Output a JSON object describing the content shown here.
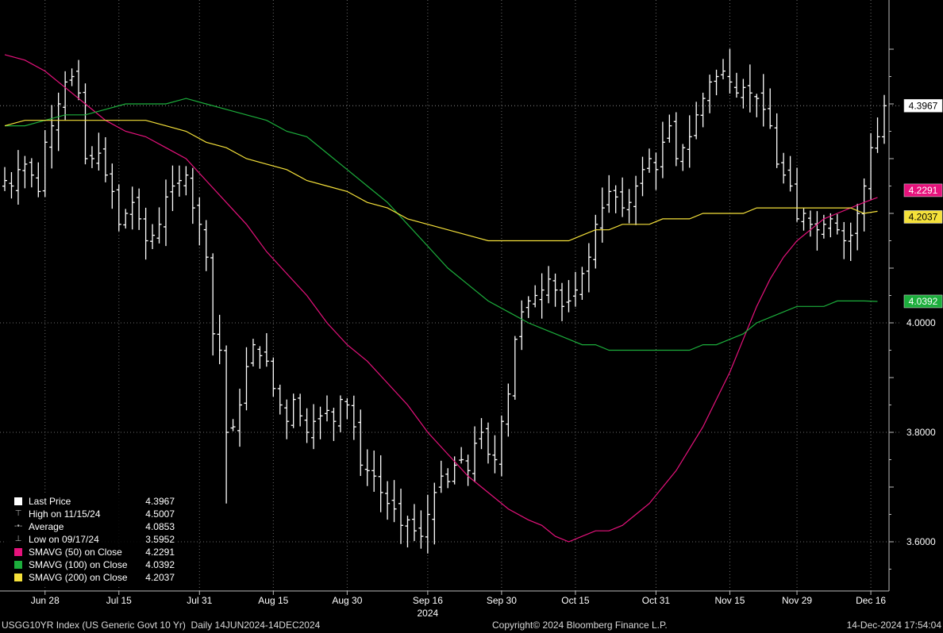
{
  "chart_data": {
    "type": "ohlc",
    "ticker_label": "USGG10YR Index (US Generic Govt 10 Yr)",
    "period_label": "Daily 14JUN2024-14DEC2024",
    "copyright": "Copyright© 2024 Bloomberg Finance L.P.",
    "timestamp": "14-Dec-2024 17:54:04",
    "year_label": "2024",
    "ylim": [
      3.5,
      4.55
    ],
    "y_ticks": [
      {
        "value": 3.6,
        "label": "3.6000"
      },
      {
        "value": 3.8,
        "label": "3.8000"
      },
      {
        "value": 4.0,
        "label": "4.0000"
      }
    ],
    "x_ticks": [
      {
        "index": 6,
        "label": "Jun 28"
      },
      {
        "index": 17,
        "label": "Jul 15"
      },
      {
        "index": 29,
        "label": "Jul 31"
      },
      {
        "index": 40,
        "label": "Aug 15"
      },
      {
        "index": 51,
        "label": "Aug 30"
      },
      {
        "index": 63,
        "label": "Sep 16"
      },
      {
        "index": 74,
        "label": "Sep 30"
      },
      {
        "index": 85,
        "label": "Oct 15"
      },
      {
        "index": 97,
        "label": "Oct 31"
      },
      {
        "index": 108,
        "label": "Nov 15"
      },
      {
        "index": 118,
        "label": "Nov 29"
      },
      {
        "index": 129,
        "label": "Dec 16"
      }
    ],
    "reference_lines": [
      4.3967
    ],
    "price_labels": [
      {
        "name": "Last Price",
        "value": 4.3967,
        "text": "4.3967",
        "bg": "#ffffff",
        "fg": "#000000"
      },
      {
        "name": "SMAVG (50)",
        "value": 4.2291,
        "text": "4.2291",
        "bg": "#e6127c",
        "fg": "#ffffff"
      },
      {
        "name": "SMAVG (200)",
        "value": 4.2037,
        "text": "4.2037",
        "bg": "#f5e13a",
        "fg": "#000000"
      },
      {
        "name": "SMAVG (100)",
        "value": 4.0392,
        "text": "4.0392",
        "bg": "#1cae3c",
        "fg": "#ffffff"
      }
    ],
    "closes": [
      4.26,
      4.25,
      4.28,
      4.29,
      4.27,
      4.24,
      4.33,
      4.36,
      4.4,
      4.44,
      4.45,
      4.42,
      4.3,
      4.3,
      4.31,
      4.27,
      4.24,
      4.18,
      4.2,
      4.22,
      4.19,
      4.15,
      4.16,
      4.18,
      4.23,
      4.25,
      4.26,
      4.27,
      4.21,
      4.18,
      4.12,
      3.98,
      3.95,
      3.8,
      3.81,
      3.85,
      3.92,
      3.96,
      3.94,
      3.93,
      3.88,
      3.85,
      3.82,
      3.86,
      3.83,
      3.8,
      3.82,
      3.83,
      3.84,
      3.82,
      3.86,
      3.85,
      3.81,
      3.74,
      3.73,
      3.72,
      3.69,
      3.67,
      3.66,
      3.63,
      3.64,
      3.62,
      3.61,
      3.65,
      3.69,
      3.72,
      3.71,
      3.74,
      3.75,
      3.73,
      3.78,
      3.8,
      3.76,
      3.75,
      3.82,
      3.87,
      3.97,
      4.02,
      4.04,
      4.05,
      4.06,
      4.08,
      4.06,
      4.03,
      4.04,
      4.06,
      4.09,
      4.12,
      4.18,
      4.21,
      4.24,
      4.23,
      4.21,
      4.22,
      4.25,
      4.28,
      4.3,
      4.28,
      4.33,
      4.36,
      4.3,
      4.32,
      4.34,
      4.38,
      4.41,
      4.44,
      4.45,
      4.46,
      4.44,
      4.42,
      4.43,
      4.42,
      4.41,
      4.39,
      4.36,
      4.29,
      4.27,
      4.25,
      4.19,
      4.2,
      4.18,
      4.17,
      4.18,
      4.19,
      4.17,
      4.15,
      4.16,
      4.2,
      4.25,
      4.32,
      4.34,
      4.3967
    ],
    "high": {
      "label": "High on 11/15/24",
      "value": 4.5007,
      "text": "4.5007",
      "index": 108
    },
    "low": {
      "label": "Low on 09/17/24",
      "value": 3.5952,
      "text": "3.5952",
      "index": 64
    },
    "average": {
      "label": "Average",
      "value": 4.0853,
      "text": "4.0853"
    },
    "last": {
      "label": "Last Price",
      "value": 4.3967,
      "text": "4.3967"
    },
    "series": [
      {
        "name": "SMAVG (50)  on Close",
        "value_text": "4.2291",
        "color": "#e6127c",
        "points": [
          [
            0,
            4.49
          ],
          [
            3,
            4.48
          ],
          [
            6,
            4.46
          ],
          [
            9,
            4.43
          ],
          [
            12,
            4.4
          ],
          [
            15,
            4.37
          ],
          [
            18,
            4.35
          ],
          [
            21,
            4.34
          ],
          [
            24,
            4.32
          ],
          [
            27,
            4.3
          ],
          [
            30,
            4.26
          ],
          [
            33,
            4.22
          ],
          [
            36,
            4.18
          ],
          [
            39,
            4.13
          ],
          [
            42,
            4.09
          ],
          [
            45,
            4.05
          ],
          [
            48,
            4.0
          ],
          [
            51,
            3.96
          ],
          [
            54,
            3.93
          ],
          [
            57,
            3.89
          ],
          [
            60,
            3.85
          ],
          [
            63,
            3.8
          ],
          [
            66,
            3.76
          ],
          [
            69,
            3.72
          ],
          [
            72,
            3.69
          ],
          [
            75,
            3.66
          ],
          [
            78,
            3.64
          ],
          [
            80,
            3.63
          ],
          [
            82,
            3.61
          ],
          [
            84,
            3.6
          ],
          [
            86,
            3.61
          ],
          [
            88,
            3.62
          ],
          [
            90,
            3.62
          ],
          [
            92,
            3.63
          ],
          [
            94,
            3.65
          ],
          [
            96,
            3.67
          ],
          [
            98,
            3.7
          ],
          [
            100,
            3.73
          ],
          [
            102,
            3.77
          ],
          [
            104,
            3.81
          ],
          [
            106,
            3.86
          ],
          [
            108,
            3.91
          ],
          [
            110,
            3.97
          ],
          [
            112,
            4.03
          ],
          [
            114,
            4.08
          ],
          [
            116,
            4.12
          ],
          [
            118,
            4.15
          ],
          [
            120,
            4.17
          ],
          [
            122,
            4.19
          ],
          [
            124,
            4.2
          ],
          [
            126,
            4.21
          ],
          [
            128,
            4.22
          ],
          [
            130,
            4.2291
          ]
        ]
      },
      {
        "name": "SMAVG (100)  on Close",
        "value_text": "4.0392",
        "color": "#1cae3c",
        "points": [
          [
            0,
            4.36
          ],
          [
            3,
            4.36
          ],
          [
            6,
            4.37
          ],
          [
            9,
            4.38
          ],
          [
            12,
            4.38
          ],
          [
            15,
            4.39
          ],
          [
            18,
            4.4
          ],
          [
            21,
            4.4
          ],
          [
            24,
            4.4
          ],
          [
            27,
            4.41
          ],
          [
            30,
            4.4
          ],
          [
            33,
            4.39
          ],
          [
            36,
            4.38
          ],
          [
            39,
            4.37
          ],
          [
            42,
            4.35
          ],
          [
            45,
            4.34
          ],
          [
            48,
            4.31
          ],
          [
            51,
            4.28
          ],
          [
            54,
            4.25
          ],
          [
            57,
            4.22
          ],
          [
            60,
            4.18
          ],
          [
            63,
            4.14
          ],
          [
            66,
            4.1
          ],
          [
            69,
            4.07
          ],
          [
            72,
            4.04
          ],
          [
            75,
            4.02
          ],
          [
            78,
            4.0
          ],
          [
            80,
            3.99
          ],
          [
            82,
            3.98
          ],
          [
            84,
            3.97
          ],
          [
            86,
            3.96
          ],
          [
            88,
            3.96
          ],
          [
            90,
            3.95
          ],
          [
            92,
            3.95
          ],
          [
            94,
            3.95
          ],
          [
            96,
            3.95
          ],
          [
            98,
            3.95
          ],
          [
            100,
            3.95
          ],
          [
            102,
            3.95
          ],
          [
            104,
            3.96
          ],
          [
            106,
            3.96
          ],
          [
            108,
            3.97
          ],
          [
            110,
            3.98
          ],
          [
            112,
            4.0
          ],
          [
            114,
            4.01
          ],
          [
            116,
            4.02
          ],
          [
            118,
            4.03
          ],
          [
            120,
            4.03
          ],
          [
            122,
            4.03
          ],
          [
            124,
            4.04
          ],
          [
            126,
            4.04
          ],
          [
            128,
            4.04
          ],
          [
            130,
            4.0392
          ]
        ]
      },
      {
        "name": "SMAVG (200)  on Close",
        "value_text": "4.2037",
        "color": "#f5e13a",
        "points": [
          [
            0,
            4.36
          ],
          [
            3,
            4.37
          ],
          [
            6,
            4.37
          ],
          [
            9,
            4.37
          ],
          [
            12,
            4.37
          ],
          [
            15,
            4.37
          ],
          [
            18,
            4.37
          ],
          [
            21,
            4.37
          ],
          [
            24,
            4.36
          ],
          [
            27,
            4.35
          ],
          [
            30,
            4.33
          ],
          [
            33,
            4.32
          ],
          [
            36,
            4.3
          ],
          [
            39,
            4.29
          ],
          [
            42,
            4.28
          ],
          [
            45,
            4.26
          ],
          [
            48,
            4.25
          ],
          [
            51,
            4.24
          ],
          [
            54,
            4.22
          ],
          [
            57,
            4.21
          ],
          [
            60,
            4.19
          ],
          [
            63,
            4.18
          ],
          [
            66,
            4.17
          ],
          [
            69,
            4.16
          ],
          [
            72,
            4.15
          ],
          [
            75,
            4.15
          ],
          [
            78,
            4.15
          ],
          [
            80,
            4.15
          ],
          [
            82,
            4.15
          ],
          [
            84,
            4.15
          ],
          [
            86,
            4.16
          ],
          [
            88,
            4.17
          ],
          [
            90,
            4.17
          ],
          [
            92,
            4.18
          ],
          [
            94,
            4.18
          ],
          [
            96,
            4.18
          ],
          [
            98,
            4.19
          ],
          [
            100,
            4.19
          ],
          [
            102,
            4.19
          ],
          [
            104,
            4.2
          ],
          [
            106,
            4.2
          ],
          [
            108,
            4.2
          ],
          [
            110,
            4.2
          ],
          [
            112,
            4.21
          ],
          [
            114,
            4.21
          ],
          [
            116,
            4.21
          ],
          [
            118,
            4.21
          ],
          [
            120,
            4.21
          ],
          [
            122,
            4.21
          ],
          [
            124,
            4.21
          ],
          [
            126,
            4.21
          ],
          [
            128,
            4.2
          ],
          [
            130,
            4.2037
          ]
        ]
      }
    ]
  }
}
